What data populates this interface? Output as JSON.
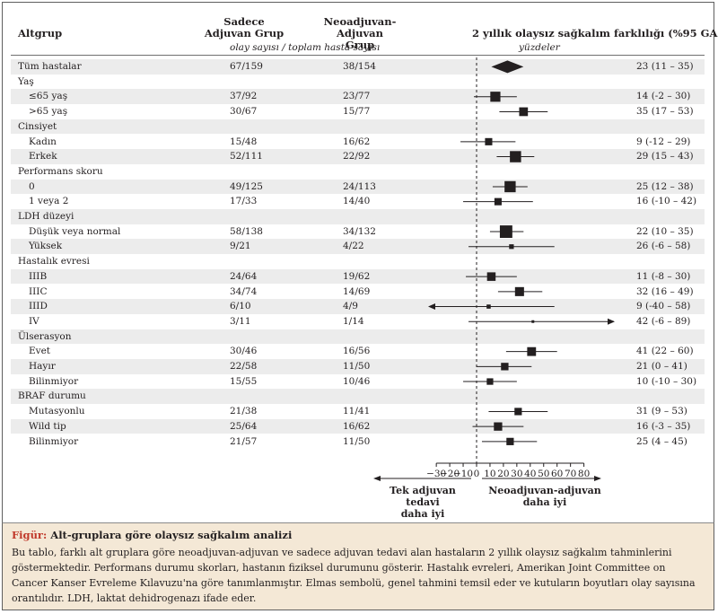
{
  "header": {
    "col_group": "Altgrup",
    "col_adjuvant": "Sadece\nAdjuvan Grup",
    "col_neo": "Neoadjuvan-Adjuvan\nGrup",
    "col_effect": "2 yıllık olaysız sağkalım farklılığı (%95 GA",
    "counts_subtitle": "olay sayısı / toplam hasta sayısı",
    "effect_subtitle": "yüzdeler"
  },
  "chart_data": {
    "type": "forest",
    "axis": {
      "min": -30,
      "max": 80,
      "ticks": [
        -30,
        -20,
        -10,
        0,
        10,
        20,
        30,
        40,
        50,
        60,
        70,
        80
      ],
      "tick_labels": [
        "−30",
        "−20",
        "−10",
        "0",
        "10",
        "20",
        "30",
        "40",
        "50",
        "60",
        "70",
        "80"
      ]
    },
    "favors_left": "Tek adjuvan tedavi\ndaha iyi",
    "favors_right": "Neoadjuvan-adjuvan\ndaha iyi",
    "rows": [
      {
        "label": "Tüm hastalar",
        "indent": 0,
        "kind": "overall",
        "adj": "67/159",
        "neo": "38/154",
        "est": 23,
        "lo": 11,
        "hi": 35,
        "ci_text": "23 (11 – 35)",
        "shaded": true
      },
      {
        "label": "Yaş",
        "indent": 0,
        "kind": "header",
        "shaded": false
      },
      {
        "label": "≤65 yaş",
        "indent": 1,
        "kind": "row",
        "adj": "37/92",
        "neo": "23/77",
        "est": 14,
        "lo": -2,
        "hi": 30,
        "ci_text": "14 (-2 – 30)",
        "shaded": true,
        "events": 60
      },
      {
        "label": ">65 yaş",
        "indent": 1,
        "kind": "row",
        "adj": "30/67",
        "neo": "15/77",
        "est": 35,
        "lo": 17,
        "hi": 53,
        "ci_text": "35 (17 – 53)",
        "shaded": false,
        "events": 45
      },
      {
        "label": "Cinsiyet",
        "indent": 0,
        "kind": "header",
        "shaded": true
      },
      {
        "label": "Kadın",
        "indent": 1,
        "kind": "row",
        "adj": "15/48",
        "neo": "16/62",
        "est": 9,
        "lo": -12,
        "hi": 29,
        "ci_text": "9 (-12 – 29)",
        "shaded": false,
        "events": 31
      },
      {
        "label": "Erkek",
        "indent": 1,
        "kind": "row",
        "adj": "52/111",
        "neo": "22/92",
        "est": 29,
        "lo": 15,
        "hi": 43,
        "ci_text": "29 (15 – 43)",
        "shaded": true,
        "events": 74
      },
      {
        "label": "Performans skoru",
        "indent": 0,
        "kind": "header",
        "shaded": false
      },
      {
        "label": "0",
        "indent": 1,
        "kind": "row",
        "adj": "49/125",
        "neo": "24/113",
        "est": 25,
        "lo": 12,
        "hi": 38,
        "ci_text": "25 (12 – 38)",
        "shaded": true,
        "events": 73
      },
      {
        "label": "1 veya 2",
        "indent": 1,
        "kind": "row",
        "adj": "17/33",
        "neo": "14/40",
        "est": 16,
        "lo": -10,
        "hi": 42,
        "ci_text": "16 (-10 – 42)",
        "shaded": false,
        "events": 31
      },
      {
        "label": "LDH düzeyi",
        "indent": 0,
        "kind": "header",
        "shaded": true
      },
      {
        "label": "Düşük veya normal",
        "indent": 1,
        "kind": "row",
        "adj": "58/138",
        "neo": "34/132",
        "est": 22,
        "lo": 10,
        "hi": 35,
        "ci_text": "22 (10 – 35)",
        "shaded": false,
        "events": 92
      },
      {
        "label": "Yüksek",
        "indent": 1,
        "kind": "row",
        "adj": "9/21",
        "neo": "4/22",
        "est": 26,
        "lo": -6,
        "hi": 58,
        "ci_text": "26 (-6 – 58)",
        "shaded": true,
        "events": 13
      },
      {
        "label": "Hastalık evresi",
        "indent": 0,
        "kind": "header",
        "shaded": false
      },
      {
        "label": "IIIB",
        "indent": 1,
        "kind": "row",
        "adj": "24/64",
        "neo": "19/62",
        "est": 11,
        "lo": -8,
        "hi": 30,
        "ci_text": "11 (-8 – 30)",
        "shaded": true,
        "events": 43
      },
      {
        "label": "IIIC",
        "indent": 1,
        "kind": "row",
        "adj": "34/74",
        "neo": "14/69",
        "est": 32,
        "lo": 16,
        "hi": 49,
        "ci_text": "32 (16 – 49)",
        "shaded": false,
        "events": 48
      },
      {
        "label": "IIID",
        "indent": 1,
        "kind": "row",
        "adj": "6/10",
        "neo": "4/9",
        "est": 9,
        "lo": -40,
        "hi": 58,
        "ci_text": "9 (-40 – 58)",
        "shaded": true,
        "events": 10,
        "arrow_left": true
      },
      {
        "label": "IV",
        "indent": 1,
        "kind": "row",
        "adj": "3/11",
        "neo": "1/14",
        "est": 42,
        "lo": -6,
        "hi": 89,
        "ci_text": "42 (-6 – 89)",
        "shaded": false,
        "events": 4,
        "arrow_right": true
      },
      {
        "label": "Ülserasyon",
        "indent": 0,
        "kind": "header",
        "shaded": true
      },
      {
        "label": "Evet",
        "indent": 1,
        "kind": "row",
        "adj": "30/46",
        "neo": "16/56",
        "est": 41,
        "lo": 22,
        "hi": 60,
        "ci_text": "41 (22 – 60)",
        "shaded": false,
        "events": 46
      },
      {
        "label": "Hayır",
        "indent": 1,
        "kind": "row",
        "adj": "22/58",
        "neo": "11/50",
        "est": 21,
        "lo": 0,
        "hi": 41,
        "ci_text": "21 (0 – 41)",
        "shaded": true,
        "events": 33
      },
      {
        "label": "Bilinmiyor",
        "indent": 1,
        "kind": "row",
        "adj": "15/55",
        "neo": "10/46",
        "est": 10,
        "lo": -10,
        "hi": 30,
        "ci_text": "10 (-10 – 30)",
        "shaded": false,
        "events": 25
      },
      {
        "label": "BRAF durumu",
        "indent": 0,
        "kind": "header",
        "shaded": true
      },
      {
        "label": "Mutasyonlu",
        "indent": 1,
        "kind": "row",
        "adj": "21/38",
        "neo": "11/41",
        "est": 31,
        "lo": 9,
        "hi": 53,
        "ci_text": "31 (9 – 53)",
        "shaded": false,
        "events": 32
      },
      {
        "label": "Wild tip",
        "indent": 1,
        "kind": "row",
        "adj": "25/64",
        "neo": "16/62",
        "est": 16,
        "lo": -3,
        "hi": 35,
        "ci_text": "16 (-3 – 35)",
        "shaded": true,
        "events": 41
      },
      {
        "label": "Bilinmiyor",
        "indent": 1,
        "kind": "row",
        "adj": "21/57",
        "neo": "11/50",
        "est": 25,
        "lo": 4,
        "hi": 45,
        "ci_text": "25 (4 – 45)",
        "shaded": false,
        "events": 32
      }
    ]
  },
  "caption": {
    "label": "Figür:",
    "title": "Alt-gruplara göre olaysız sağkalım analizi",
    "body": "Bu tablo, farklı alt gruplara göre neoadjuvan-adjuvan ve sadece adjuvan tedavi alan hastaların 2 yıllık olaysız sağkalım tahminlerini göstermektedir. Performans durumu skorları, hastanın fiziksel durumunu gösterir. Hastalık evreleri, Amerikan Joint Committee on Cancer Kanser Evreleme Kılavuzu'na göre tanımlanmıştır. Elmas sembolü, genel tahmini temsil eder ve kutuların boyutları olay sayısına orantılıdır. LDH, laktat dehidrogenazı ifade eder."
  }
}
